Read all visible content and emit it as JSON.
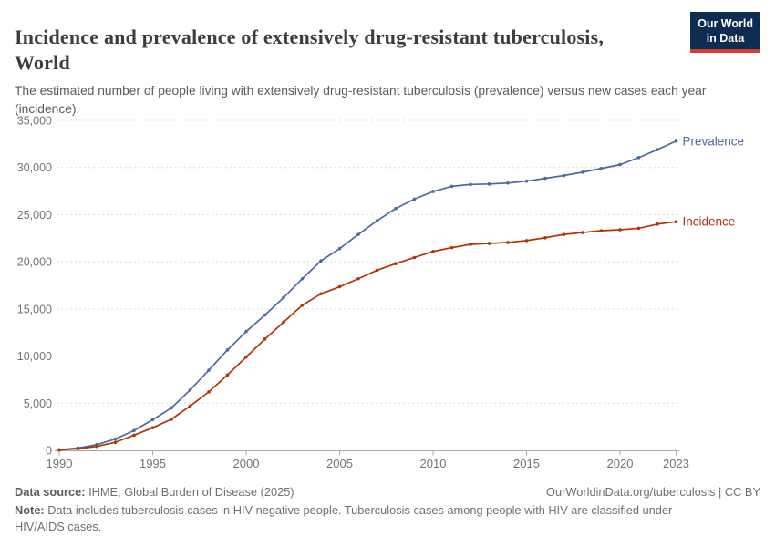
{
  "header": {
    "title_lines": [
      "Incidence and prevalence of extensively drug-resistant tuberculosis,",
      "World"
    ],
    "subtitle_lines": [
      "The estimated number of people living with extensively drug-resistant tuberculosis (prevalence) versus new cases each year",
      "(incidence)."
    ]
  },
  "logo": {
    "line1": "Our World",
    "line2": "in Data",
    "bg_color": "#0d2c51",
    "bar_color": "#d93a2b"
  },
  "chart_data": {
    "type": "line",
    "title": "Incidence and prevalence of extensively drug-resistant tuberculosis, World",
    "xlabel": "",
    "ylabel": "",
    "xlim": [
      1990,
      2023
    ],
    "ylim": [
      0,
      35000
    ],
    "grid": "horizontal-dashed",
    "legend_position": "line-end-labels",
    "xticks": [
      1990,
      1995,
      2000,
      2005,
      2010,
      2015,
      2020,
      2023
    ],
    "yticks": [
      0,
      5000,
      10000,
      15000,
      20000,
      25000,
      30000,
      35000
    ],
    "x": [
      1990,
      1991,
      1992,
      1993,
      1994,
      1995,
      1996,
      1997,
      1998,
      1999,
      2000,
      2001,
      2002,
      2003,
      2004,
      2005,
      2006,
      2007,
      2008,
      2009,
      2010,
      2011,
      2012,
      2013,
      2014,
      2015,
      2016,
      2017,
      2018,
      2019,
      2020,
      2021,
      2022,
      2023
    ],
    "series": [
      {
        "name": "Prevalence",
        "color": "#4C6A9C",
        "values": [
          60,
          250,
          600,
          1200,
          2100,
          3250,
          4500,
          6400,
          8500,
          10650,
          12600,
          14350,
          16200,
          18200,
          20100,
          21400,
          22900,
          24350,
          25650,
          26650,
          27450,
          28000,
          28200,
          28250,
          28350,
          28550,
          28850,
          29150,
          29500,
          29900,
          30300,
          31050,
          31900,
          32800
        ]
      },
      {
        "name": "Incidence",
        "color": "#B13507",
        "values": [
          40,
          170,
          420,
          850,
          1600,
          2400,
          3300,
          4700,
          6200,
          8000,
          9900,
          11800,
          13600,
          15400,
          16600,
          17350,
          18200,
          19100,
          19800,
          20450,
          21100,
          21500,
          21850,
          21950,
          22050,
          22250,
          22550,
          22900,
          23100,
          23300,
          23400,
          23550,
          24000,
          24250
        ]
      }
    ],
    "axis_color": "#a9a9a9",
    "grid_color": "#dcdcdc",
    "tick_label_color": "#737373"
  },
  "footer": {
    "data_source_label": "Data source:",
    "data_source": "IHME, Global Burden of Disease (2025)",
    "link": "OurWorldinData.org/tuberculosis | CC BY",
    "note_label": "Note:",
    "note": "Data includes tuberculosis cases in HIV-negative people. Tuberculosis cases among people with HIV are classified under HIV/AIDS cases."
  }
}
